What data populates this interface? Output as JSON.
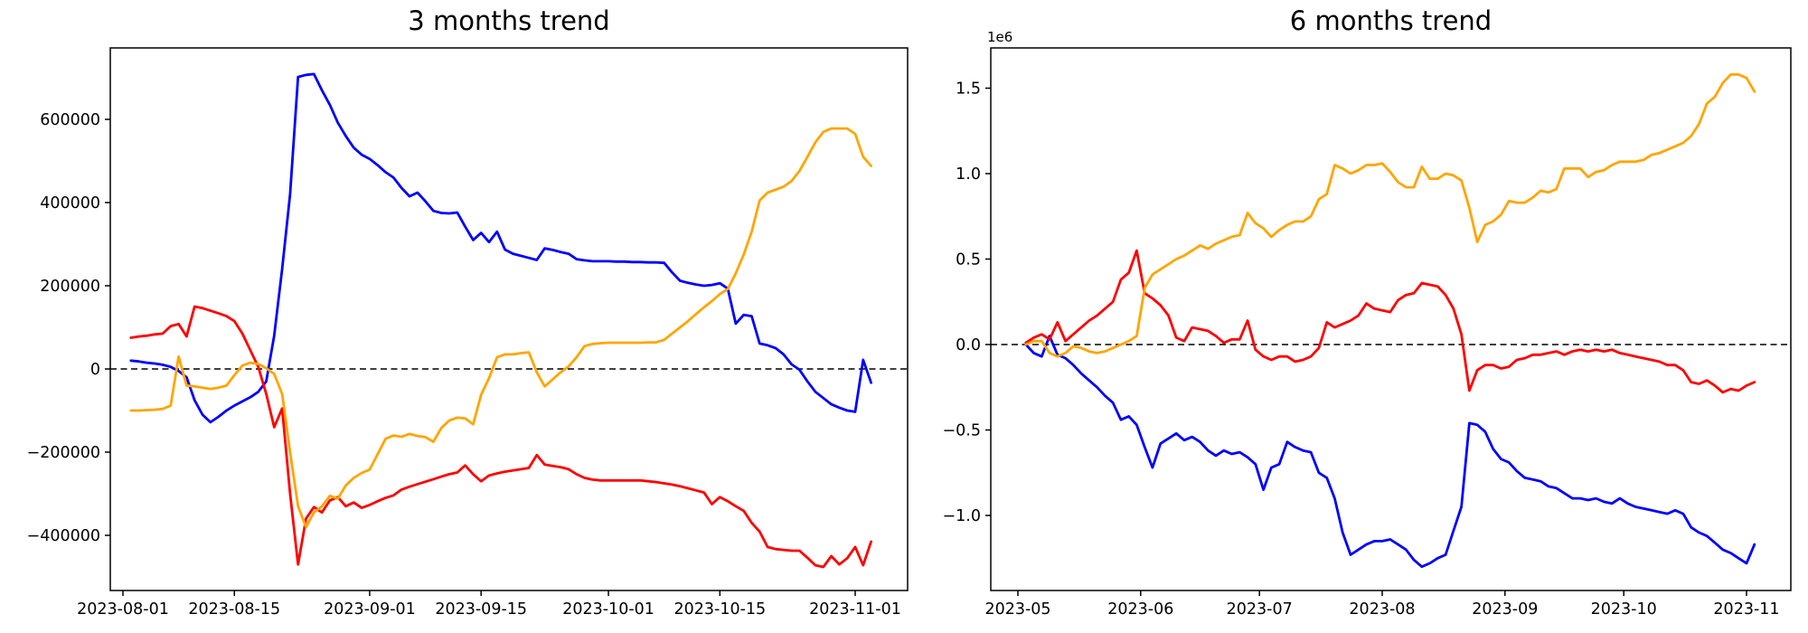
{
  "page": {
    "background": "#ffffff"
  },
  "chart_data": [
    {
      "type": "line",
      "title": "3 months trend",
      "xlabel": "",
      "ylabel": "",
      "grid": false,
      "legend": null,
      "zero_dashed_line": true,
      "x_start_date": "2023-08-02",
      "x_end_date": "2023-11-03",
      "point_step_days": 1,
      "x_tick_labels": [
        "2023-08-01",
        "2023-08-15",
        "2023-09-01",
        "2023-09-15",
        "2023-10-01",
        "2023-10-15",
        "2023-11-01"
      ],
      "y_tick_labels": [
        "600000",
        "400000",
        "200000",
        "0",
        "−200000",
        "−400000"
      ],
      "y_tick_values": [
        600000,
        400000,
        200000,
        0,
        -200000,
        -400000
      ],
      "ylim": [
        -533000,
        772000
      ],
      "series": [
        {
          "name": "blue",
          "color": "#0000ff",
          "values": [
            20000,
            18000,
            15000,
            13000,
            10000,
            5000,
            -5000,
            -20000,
            -75000,
            -110000,
            -128000,
            -115000,
            -100000,
            -88000,
            -78000,
            -68000,
            -55000,
            -30000,
            80000,
            240000,
            420000,
            702000,
            707000,
            709000,
            670000,
            635000,
            592000,
            560000,
            532000,
            515000,
            505000,
            490000,
            473000,
            460000,
            435000,
            415000,
            424000,
            403000,
            380000,
            375000,
            374000,
            376000,
            342000,
            310000,
            327000,
            305000,
            330000,
            287000,
            277000,
            272000,
            267000,
            262000,
            290000,
            286000,
            281000,
            277000,
            264000,
            261000,
            259000,
            259000,
            259000,
            258000,
            258000,
            257000,
            257000,
            256000,
            256000,
            255000,
            232000,
            212000,
            207000,
            203000,
            200000,
            202000,
            206000,
            193000,
            109000,
            130000,
            127000,
            61000,
            57000,
            50000,
            35000,
            11000,
            -2000,
            -30000,
            -55000,
            -70000,
            -85000,
            -93000,
            -100000,
            -103000,
            22000,
            -33000
          ]
        },
        {
          "name": "red",
          "color": "#ff0000",
          "values": [
            75000,
            78000,
            80000,
            83000,
            85000,
            103000,
            108000,
            78000,
            150000,
            146000,
            140000,
            134000,
            127000,
            115000,
            85000,
            45000,
            5000,
            -60000,
            -140000,
            -95000,
            -300000,
            -470000,
            -360000,
            -332000,
            -345000,
            -316000,
            -308000,
            -330000,
            -321000,
            -334000,
            -327000,
            -318000,
            -310000,
            -304000,
            -290000,
            -283000,
            -277000,
            -271000,
            -265000,
            -259000,
            -253000,
            -249000,
            -232000,
            -253000,
            -270000,
            -256000,
            -251000,
            -247000,
            -244000,
            -241000,
            -238000,
            -207000,
            -230000,
            -233000,
            -236000,
            -241000,
            -253000,
            -262000,
            -266000,
            -268000,
            -268000,
            -268000,
            -268000,
            -268000,
            -268000,
            -270000,
            -272000,
            -275000,
            -278000,
            -282000,
            -287000,
            -292000,
            -297000,
            -325000,
            -308000,
            -318000,
            -330000,
            -341000,
            -370000,
            -391000,
            -428000,
            -433000,
            -435000,
            -437000,
            -437000,
            -454000,
            -472000,
            -476000,
            -450000,
            -470000,
            -455000,
            -428000,
            -472000,
            -415000
          ]
        },
        {
          "name": "orange",
          "color": "#ffa500",
          "values": [
            -100000,
            -100000,
            -99000,
            -98000,
            -96000,
            -88000,
            30000,
            -40000,
            -42000,
            -45000,
            -48000,
            -45000,
            -40000,
            -15000,
            8000,
            15000,
            12000,
            2000,
            -12000,
            -60000,
            -200000,
            -330000,
            -380000,
            -345000,
            -330000,
            -305000,
            -312000,
            -280000,
            -262000,
            -250000,
            -242000,
            -205000,
            -168000,
            -160000,
            -163000,
            -156000,
            -161000,
            -164000,
            -175000,
            -142000,
            -124000,
            -117000,
            -119000,
            -133000,
            -62000,
            -22000,
            28000,
            35000,
            35000,
            38000,
            40000,
            -8000,
            -42000,
            -25000,
            -8000,
            6000,
            28000,
            55000,
            60000,
            62000,
            63000,
            63000,
            63000,
            63000,
            63000,
            64000,
            64000,
            70000,
            85000,
            100000,
            115000,
            132000,
            148000,
            163000,
            180000,
            192000,
            230000,
            275000,
            330000,
            405000,
            424000,
            431000,
            438000,
            452000,
            476000,
            510000,
            545000,
            570000,
            578000,
            578000,
            578000,
            565000,
            510000,
            488000
          ]
        }
      ]
    },
    {
      "type": "line",
      "title": "6 months trend",
      "xlabel": "",
      "ylabel": "",
      "grid": false,
      "legend": null,
      "zero_dashed_line": true,
      "offset_text": "1e6",
      "y_unit": 1000000,
      "x_start_date": "2023-05-03",
      "x_end_date": "2023-11-03",
      "point_step_days": 2,
      "x_tick_labels": [
        "2023-05",
        "2023-06",
        "2023-07",
        "2023-08",
        "2023-09",
        "2023-10",
        "2023-11"
      ],
      "y_tick_labels": [
        "1.5",
        "1.0",
        "0.5",
        "0.0",
        "−0.5",
        "−1.0"
      ],
      "y_tick_values": [
        1.5,
        1.0,
        0.5,
        0.0,
        -0.5,
        -1.0
      ],
      "ylim": [
        -1.44,
        1.74
      ],
      "series": [
        {
          "name": "blue",
          "color": "#0000ff",
          "values": [
            0.0,
            -0.05,
            -0.07,
            0.05,
            -0.06,
            -0.08,
            -0.12,
            -0.17,
            -0.21,
            -0.25,
            -0.3,
            -0.34,
            -0.44,
            -0.42,
            -0.47,
            -0.6,
            -0.72,
            -0.58,
            -0.55,
            -0.52,
            -0.56,
            -0.54,
            -0.57,
            -0.62,
            -0.65,
            -0.62,
            -0.64,
            -0.63,
            -0.66,
            -0.7,
            -0.85,
            -0.72,
            -0.7,
            -0.57,
            -0.6,
            -0.62,
            -0.63,
            -0.75,
            -0.78,
            -0.9,
            -1.1,
            -1.23,
            -1.2,
            -1.17,
            -1.15,
            -1.15,
            -1.14,
            -1.17,
            -1.2,
            -1.26,
            -1.3,
            -1.28,
            -1.25,
            -1.23,
            -1.09,
            -0.95,
            -0.46,
            -0.47,
            -0.51,
            -0.61,
            -0.67,
            -0.69,
            -0.74,
            -0.78,
            -0.79,
            -0.8,
            -0.83,
            -0.84,
            -0.87,
            -0.9,
            -0.9,
            -0.91,
            -0.9,
            -0.92,
            -0.93,
            -0.9,
            -0.93,
            -0.95,
            -0.96,
            -0.97,
            -0.98,
            -0.99,
            -0.97,
            -0.99,
            -1.07,
            -1.1,
            -1.12,
            -1.16,
            -1.2,
            -1.22,
            -1.25,
            -1.28,
            -1.17
          ]
        },
        {
          "name": "red",
          "color": "#ff0000",
          "values": [
            0.01,
            0.04,
            0.06,
            0.03,
            0.13,
            0.02,
            0.06,
            0.1,
            0.14,
            0.17,
            0.21,
            0.25,
            0.38,
            0.42,
            0.55,
            0.3,
            0.27,
            0.23,
            0.17,
            0.04,
            0.02,
            0.1,
            0.09,
            0.08,
            0.05,
            0.01,
            0.03,
            0.03,
            0.14,
            -0.03,
            -0.07,
            -0.09,
            -0.07,
            -0.07,
            -0.1,
            -0.09,
            -0.07,
            -0.02,
            0.13,
            0.1,
            0.12,
            0.14,
            0.17,
            0.24,
            0.21,
            0.2,
            0.19,
            0.26,
            0.29,
            0.3,
            0.36,
            0.35,
            0.34,
            0.29,
            0.21,
            0.06,
            -0.27,
            -0.15,
            -0.12,
            -0.12,
            -0.14,
            -0.13,
            -0.09,
            -0.08,
            -0.06,
            -0.06,
            -0.05,
            -0.04,
            -0.06,
            -0.04,
            -0.03,
            -0.04,
            -0.03,
            -0.04,
            -0.03,
            -0.05,
            -0.06,
            -0.07,
            -0.08,
            -0.09,
            -0.1,
            -0.12,
            -0.12,
            -0.15,
            -0.22,
            -0.23,
            -0.21,
            -0.24,
            -0.28,
            -0.26,
            -0.27,
            -0.24,
            -0.22
          ]
        },
        {
          "name": "orange",
          "color": "#ffa500",
          "values": [
            0.0,
            0.02,
            0.02,
            -0.05,
            -0.07,
            -0.05,
            -0.01,
            -0.02,
            -0.04,
            -0.05,
            -0.04,
            -0.02,
            0.0,
            0.02,
            0.05,
            0.33,
            0.41,
            0.44,
            0.47,
            0.5,
            0.52,
            0.55,
            0.58,
            0.56,
            0.59,
            0.61,
            0.63,
            0.64,
            0.77,
            0.71,
            0.68,
            0.63,
            0.67,
            0.7,
            0.72,
            0.72,
            0.75,
            0.85,
            0.88,
            1.05,
            1.03,
            1.0,
            1.02,
            1.05,
            1.05,
            1.06,
            1.01,
            0.95,
            0.92,
            0.92,
            1.04,
            0.97,
            0.97,
            1.0,
            0.99,
            0.96,
            0.8,
            0.6,
            0.7,
            0.72,
            0.76,
            0.84,
            0.83,
            0.83,
            0.86,
            0.9,
            0.89,
            0.91,
            1.03,
            1.03,
            1.03,
            0.98,
            1.01,
            1.02,
            1.05,
            1.07,
            1.07,
            1.07,
            1.08,
            1.11,
            1.12,
            1.14,
            1.16,
            1.18,
            1.22,
            1.29,
            1.41,
            1.45,
            1.53,
            1.58,
            1.58,
            1.56,
            1.48
          ]
        }
      ]
    }
  ]
}
